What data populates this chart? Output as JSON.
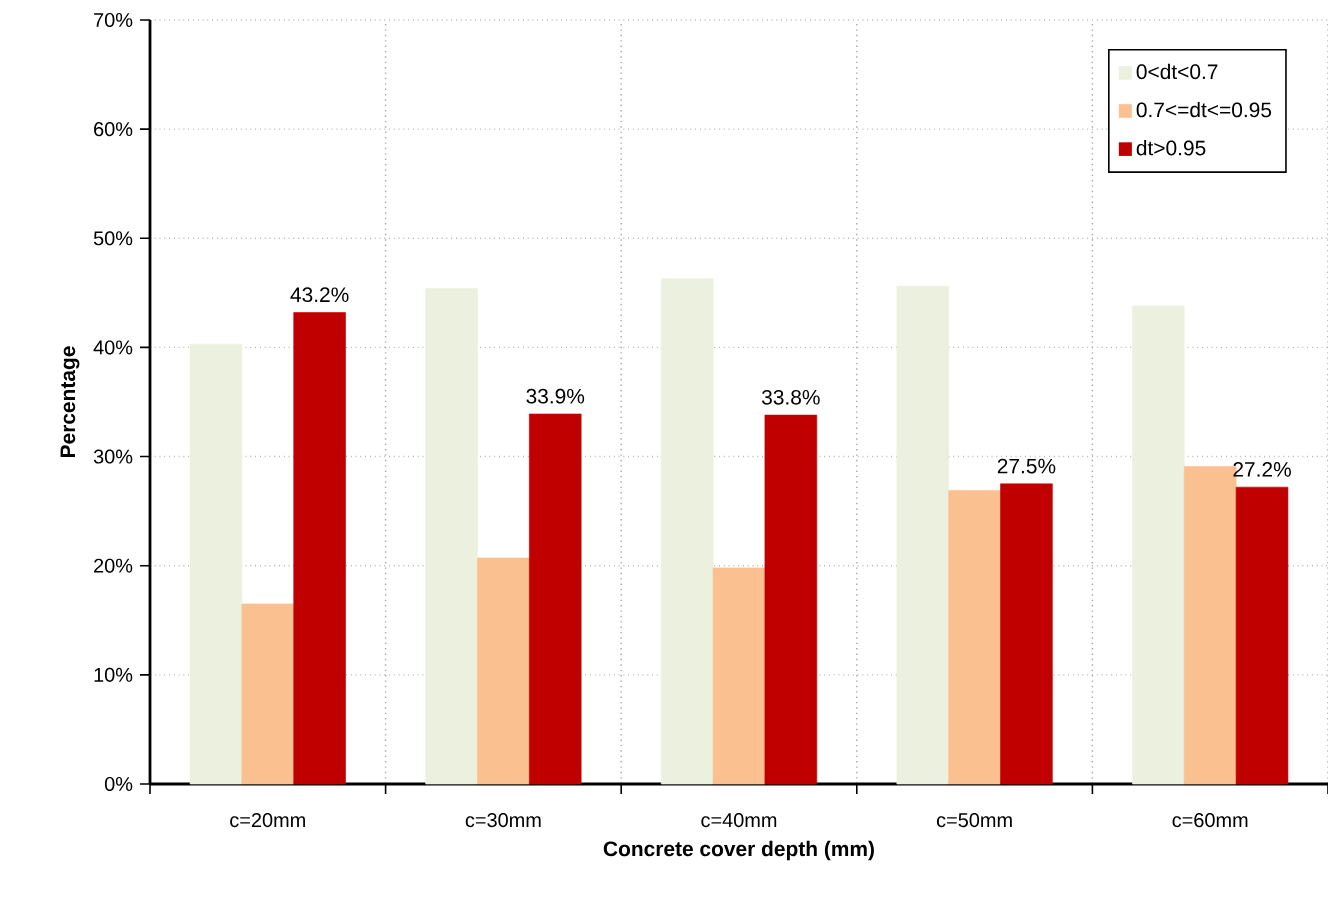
{
  "chart_data": {
    "type": "bar",
    "xlabel": "Concrete cover depth (mm)",
    "ylabel": "Percentage",
    "categories": [
      "c=20mm",
      "c=30mm",
      "c=40mm",
      "c=50mm",
      "c=60mm"
    ],
    "series": [
      {
        "name": "0<dt<0.7",
        "color": "#ebf1de",
        "values": [
          40.3,
          45.4,
          46.3,
          45.6,
          43.8
        ]
      },
      {
        "name": "0.7<=dt<=0.95",
        "color": "#fac090",
        "values": [
          16.5,
          20.7,
          19.8,
          26.9,
          29.1
        ]
      },
      {
        "name": "dt>0.95",
        "color": "#c00000",
        "values": [
          43.2,
          33.9,
          33.8,
          27.5,
          27.2
        ],
        "value_labels": [
          "43.2%",
          "33.9%",
          "33.8%",
          "27.5%",
          "27.2%"
        ]
      }
    ],
    "ylim": [
      0,
      70
    ],
    "yticks": [
      {
        "value": 0,
        "label": "0%"
      },
      {
        "value": 10,
        "label": "10%"
      },
      {
        "value": 20,
        "label": "20%"
      },
      {
        "value": 30,
        "label": "30%"
      },
      {
        "value": 40,
        "label": "40%"
      },
      {
        "value": 50,
        "label": "50%"
      },
      {
        "value": 60,
        "label": "60%"
      },
      {
        "value": 70,
        "label": "70%"
      }
    ],
    "grid": true,
    "legend": "top right"
  }
}
